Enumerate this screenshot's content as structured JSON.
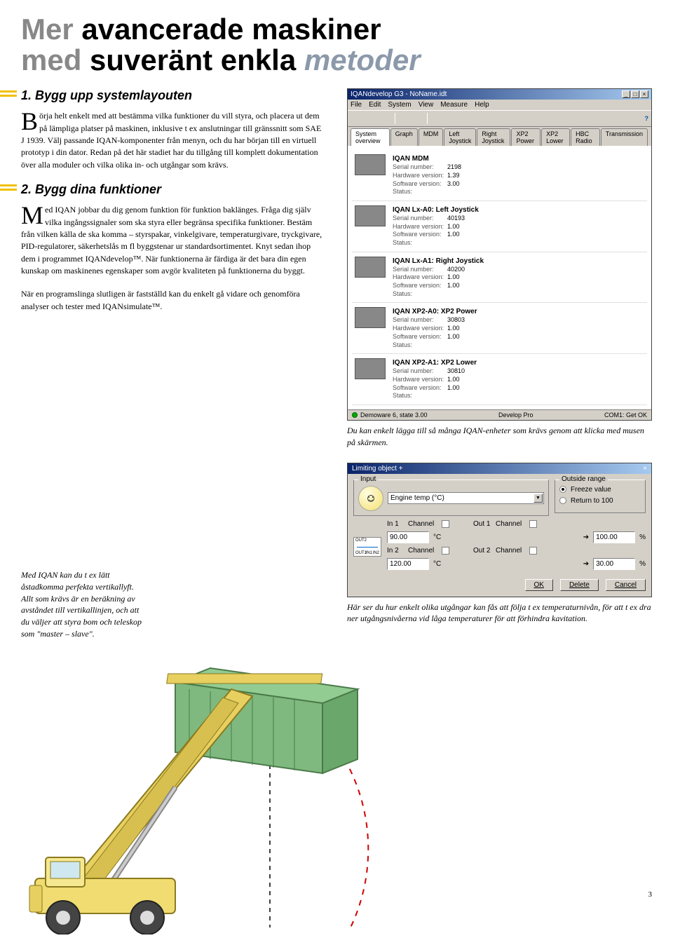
{
  "title": {
    "line1a": "Mer ",
    "line1b": "avancerade maskiner",
    "line2a": "med ",
    "line2b": "suveränt enkla ",
    "line2c": "metoder"
  },
  "section1": {
    "heading": "1. Bygg upp systemlayouten",
    "dropcap": "B",
    "body": "örja helt enkelt med att bestämma vilka funktioner du vill styra, och placera ut dem på lämpliga platser på maskinen, inklusive t ex anslutningar till gränssnitt som SAE J 1939. Välj passande IQAN-komponenter från menyn, och du har början till en virtuell prototyp i din dator. Redan på det här stadiet har du tillgång till komplett dokumentation över alla moduler och vilka olika in- och utgångar som krävs."
  },
  "section2": {
    "heading": "2. Bygg dina funktioner",
    "dropcap": "M",
    "body": "ed IQAN jobbar du dig genom funktion för funktion baklänges. Fråga dig själv vilka ingångssignaler som ska styra eller begränsa specifika funktioner. Bestäm från vilken källa de ska komma – styrspakar, vinkelgivare, temperaturgivare, tryckgivare, PID-regulatorer, säkerhetslås m fl byggstenar ur standardsortimentet. Knyt sedan ihop dem i programmet IQANdevelop™. När funktionerna är färdiga är det bara din egen kunskap om maskinenes egenskaper som avgör kvaliteten på funktionerna du byggt.",
    "body2": "När en programslinga slutligen är fastställd kan du enkelt gå vidare och genomföra analyser och tester med IQANsimulate™."
  },
  "caption1": "Du kan enkelt lägga till så många IQAN-enheter som krävs genom att klicka med musen på skärmen.",
  "caption2": "Här ser du hur enkelt olika utgångar kan fås att följa t ex temperaturnivån, för att t ex dra ner utgångsnivåerna vid låga temperaturer för att förhindra kavitation.",
  "stacker_caption": "Med IQAN kan du t ex lätt åstadkomma perfekta vertikallyft. Allt som krävs är en beräkning av avståndet till vertikallinjen, och att du väljer att styra bom och teleskop som \"master – slave\".",
  "app": {
    "title": "IQANdevelop G3 - NoName.idt",
    "menu": [
      "File",
      "Edit",
      "System",
      "View",
      "Measure",
      "Help"
    ],
    "tabs": [
      "System overview",
      "Graph",
      "MDM",
      "Left Joystick",
      "Right Joystick",
      "XP2 Power",
      "XP2 Lower",
      "HBC Radio",
      "Transmission"
    ],
    "modules": [
      {
        "name": "IQAN MDM",
        "serial": "2198",
        "hw": "1.39",
        "sw": "3.00",
        "status": ""
      },
      {
        "name": "IQAN Lx-A0: Left Joystick",
        "serial": "40193",
        "hw": "1.00",
        "sw": "1.00",
        "status": ""
      },
      {
        "name": "IQAN Lx-A1: Right Joystick",
        "serial": "40200",
        "hw": "1.00",
        "sw": "1.00",
        "status": ""
      },
      {
        "name": "IQAN XP2-A0: XP2 Power",
        "serial": "30803",
        "hw": "1.00",
        "sw": "1.00",
        "status": ""
      },
      {
        "name": "IQAN XP2-A1: XP2 Lower",
        "serial": "30810",
        "hw": "1.00",
        "sw": "1.00",
        "status": ""
      }
    ],
    "status_left": "Demoware 6, state 3.00",
    "status_mid": "Develop Pro",
    "status_right": "COM1: Get OK",
    "labels": {
      "serial": "Serial number:",
      "hw": "Hardware version:",
      "sw": "Software version:",
      "status": "Status:"
    }
  },
  "dialog": {
    "title": "Limiting object +",
    "input_label": "Input",
    "input_value": "Engine temp (°C)",
    "outside_label": "Outside range",
    "freeze": "Freeze value",
    "return100": "Return to 100",
    "in1": "In 1",
    "in2": "In 2",
    "out1": "Out 1",
    "out2": "Out 2",
    "channel": "Channel",
    "in1_val": "90.00",
    "in2_val": "120.00",
    "out1_val": "100.00",
    "out2_val": "30.00",
    "unit": "°C",
    "pct": "%",
    "ok": "OK",
    "delete": "Delete",
    "cancel": "Cancel"
  },
  "page_number": "3",
  "colors": {
    "accent_yellow": "#f0c000",
    "title_gray": "#888888",
    "title_blue": "#8b99aa"
  }
}
